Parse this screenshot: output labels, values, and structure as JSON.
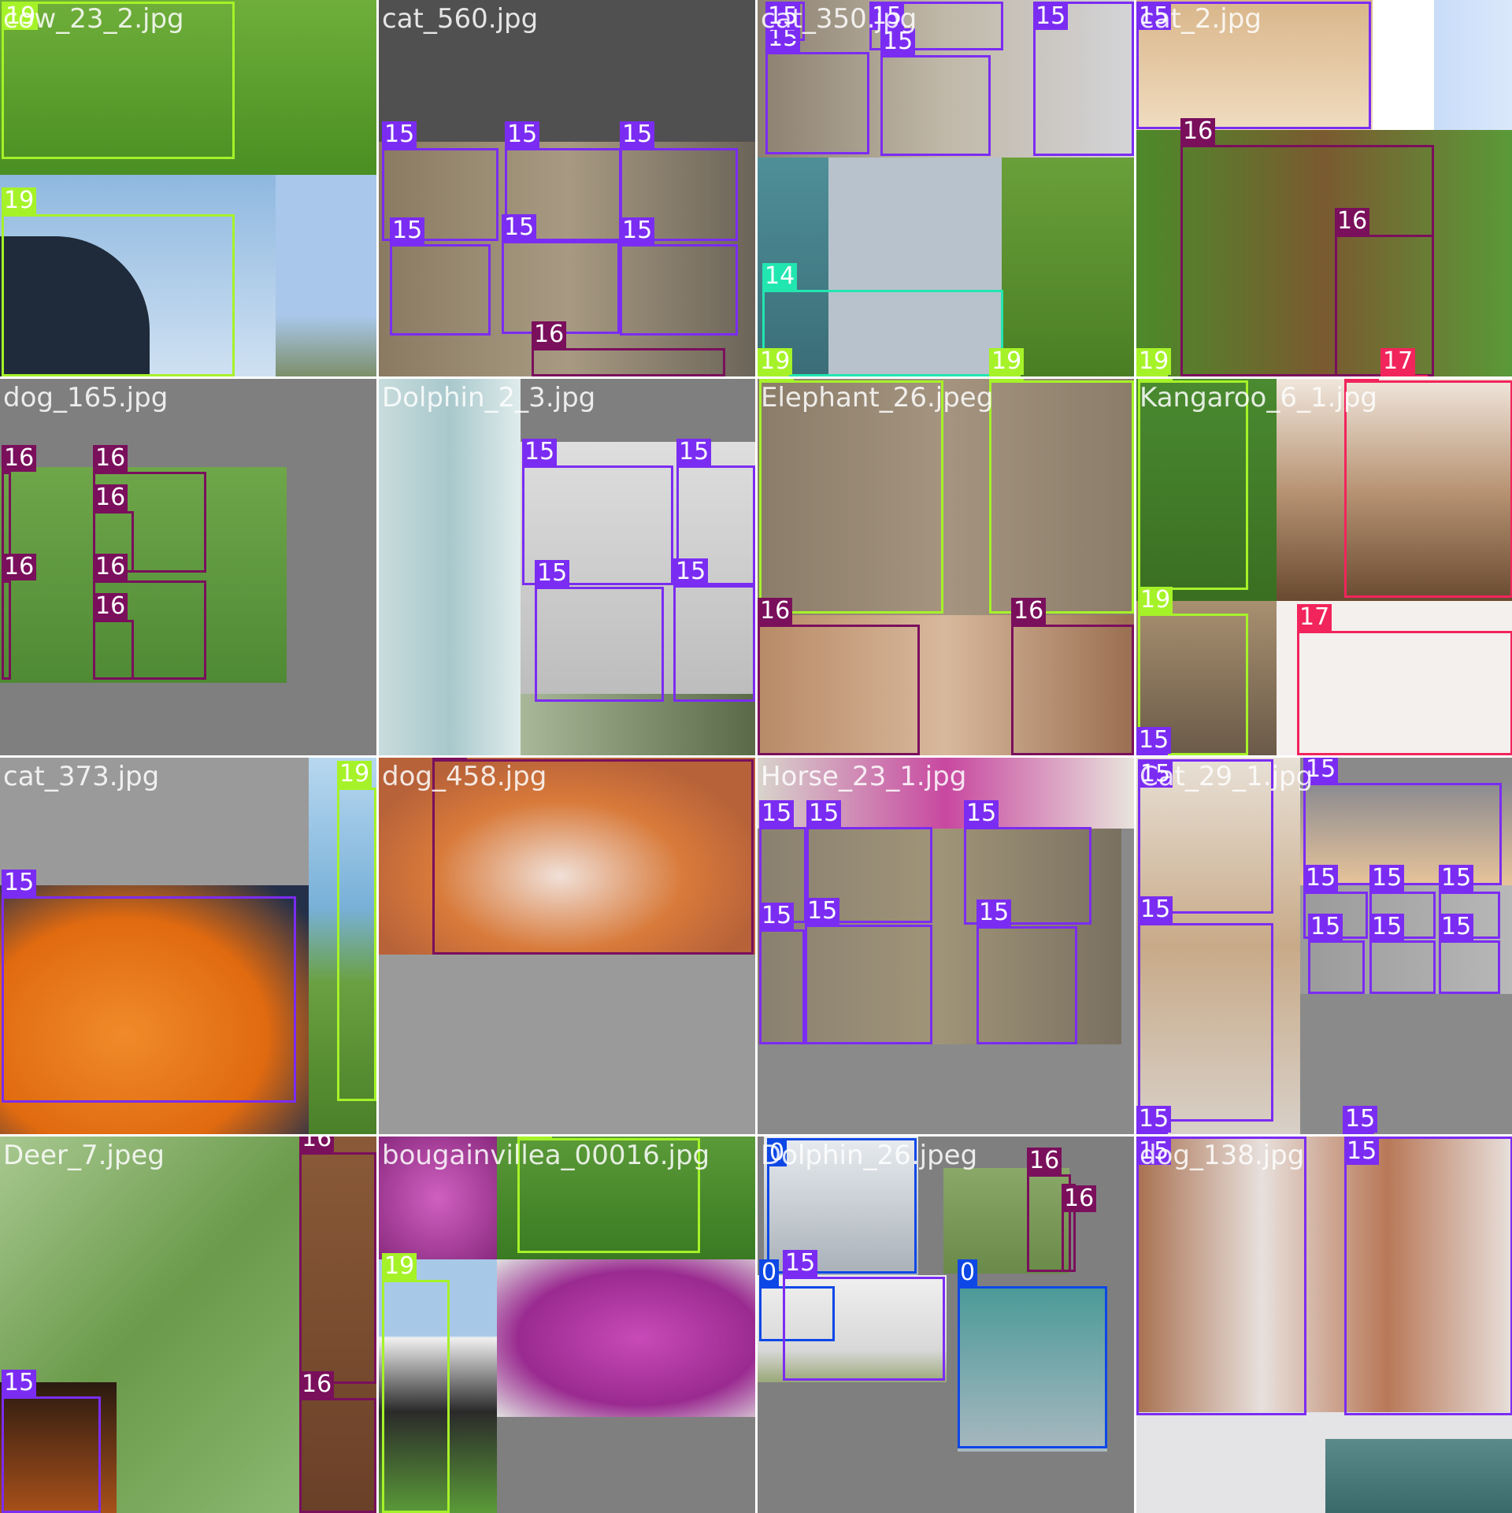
{
  "tiles": [
    {
      "filename": "cow_23_2.jpg"
    },
    {
      "filename": "cat_560.jpg"
    },
    {
      "filename": "cat_350.jpg"
    },
    {
      "filename": "cat_2.jpg"
    },
    {
      "filename": "dog_165.jpg"
    },
    {
      "filename": "Dolphin_2_3.jpg"
    },
    {
      "filename": "Elephant_26.jpeg"
    },
    {
      "filename": "Kangaroo_6_1.jpg"
    },
    {
      "filename": "cat_373.jpg"
    },
    {
      "filename": "dog_458.jpg"
    },
    {
      "filename": "Horse_23_1.jpg"
    },
    {
      "filename": "Cat_29_1.jpg"
    },
    {
      "filename": "Deer_7.jpeg"
    },
    {
      "filename": "bougainvillea_00016.jpg"
    },
    {
      "filename": "Dolphin_26.jpeg"
    },
    {
      "filename": "dog_138.jpg"
    }
  ],
  "class_ids": {
    "cat": "15",
    "dog": "16",
    "cow": "19",
    "dolphin_14": "14",
    "horse": "17",
    "dolphin_0": "0"
  },
  "class_colors": {
    "15": "#7b2cf2",
    "16": "#7a0f5c",
    "19": "#a6f229",
    "14": "#22e6b0",
    "17": "#f2245c",
    "0": "#0d47e6"
  }
}
